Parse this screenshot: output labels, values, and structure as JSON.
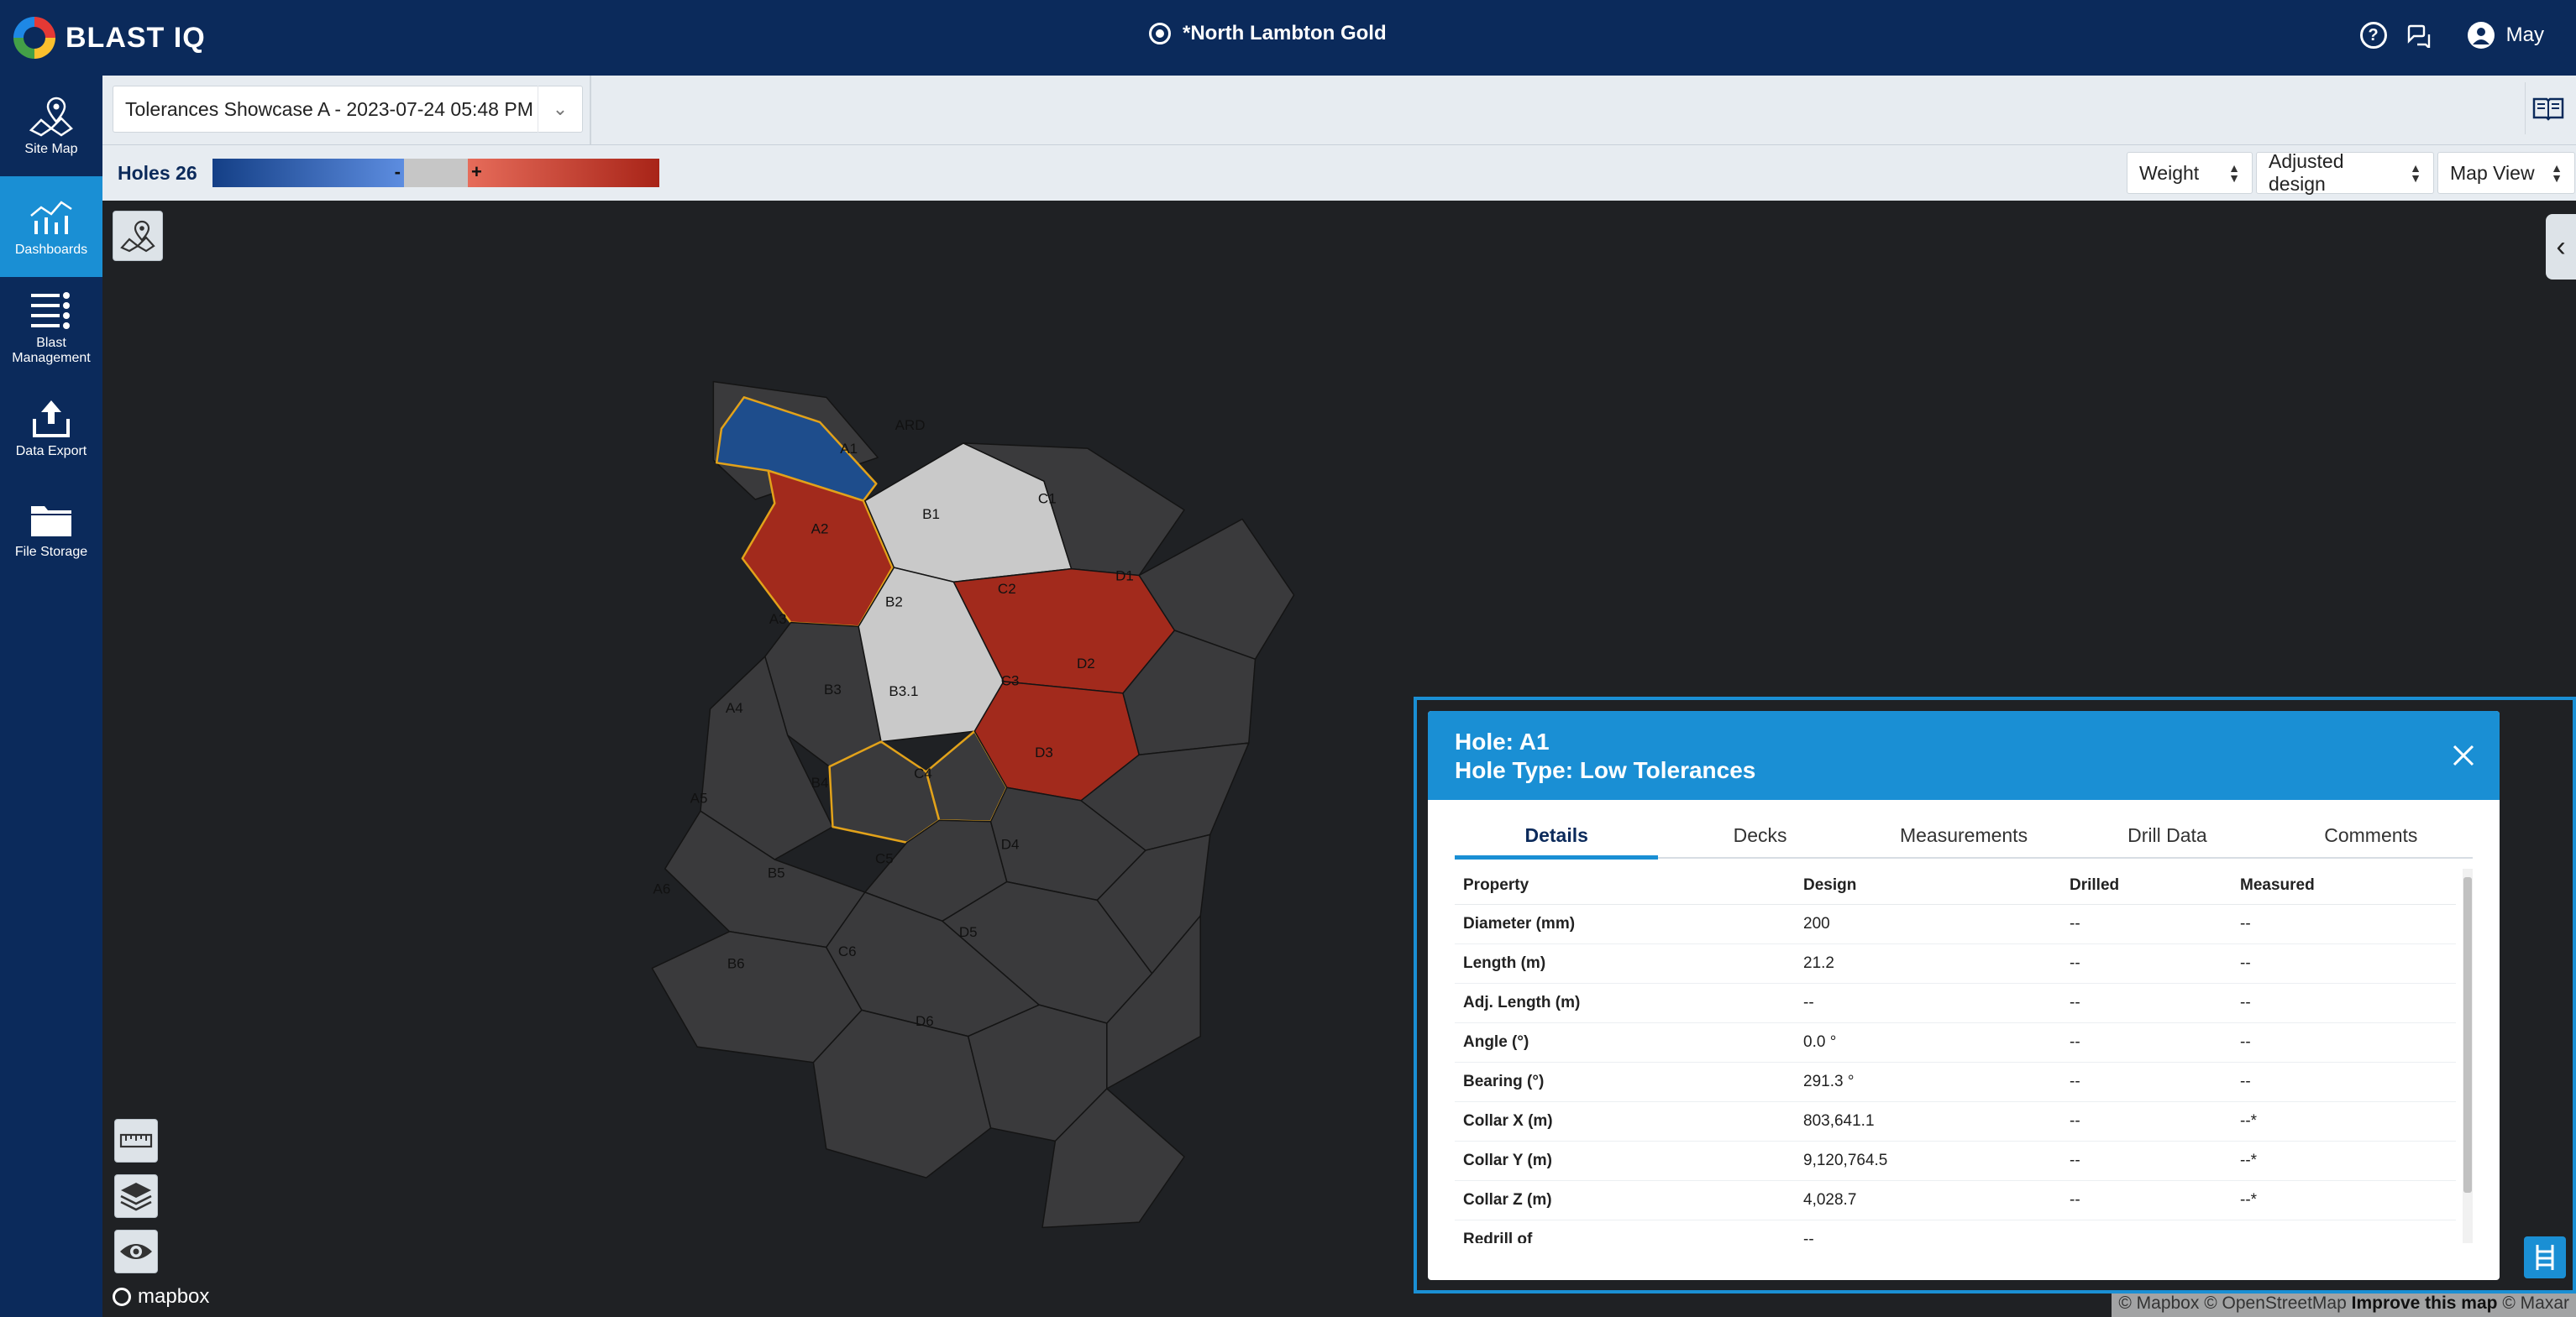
{
  "app": {
    "brand": "BLAST IQ",
    "site_name": "*North Lambton Gold",
    "user_name": "May"
  },
  "sidebar": {
    "items": [
      {
        "label": "Site Map",
        "icon": "map-icon"
      },
      {
        "label": "Dashboards",
        "icon": "dashboard-chart-icon",
        "active": true
      },
      {
        "label": "Blast Management",
        "icon": "list-icon"
      },
      {
        "label": "Data Export",
        "icon": "upload-icon"
      },
      {
        "label": "File Storage",
        "icon": "folder-icon"
      }
    ]
  },
  "toolbar": {
    "dashboard_selected": "Tolerances Showcase A - 2023-07-24 05:48 PM ..."
  },
  "subbar": {
    "holes_label": "Holes 26",
    "legend_minus": "-",
    "legend_plus": "+",
    "selectors": {
      "metric": "Weight",
      "design": "Adjusted design",
      "view": "Map View"
    }
  },
  "map": {
    "holes": [
      {
        "id": "ARD",
        "state": "none"
      },
      {
        "id": "A1",
        "state": "low"
      },
      {
        "id": "A2",
        "state": "high"
      },
      {
        "id": "A3",
        "state": "none"
      },
      {
        "id": "A4",
        "state": "none"
      },
      {
        "id": "A5",
        "state": "none"
      },
      {
        "id": "A6",
        "state": "none"
      },
      {
        "id": "B1",
        "state": "neutral"
      },
      {
        "id": "B2",
        "state": "neutral"
      },
      {
        "id": "B3",
        "state": "none"
      },
      {
        "id": "B3.1",
        "state": "none"
      },
      {
        "id": "B4",
        "state": "none"
      },
      {
        "id": "B5",
        "state": "none"
      },
      {
        "id": "B6",
        "state": "none"
      },
      {
        "id": "C1",
        "state": "none"
      },
      {
        "id": "C2",
        "state": "high"
      },
      {
        "id": "C3",
        "state": "high"
      },
      {
        "id": "C4",
        "state": "none"
      },
      {
        "id": "C5",
        "state": "none"
      },
      {
        "id": "C6",
        "state": "none"
      },
      {
        "id": "D1",
        "state": "none"
      },
      {
        "id": "D2",
        "state": "none"
      },
      {
        "id": "D3",
        "state": "none"
      },
      {
        "id": "D4",
        "state": "none"
      },
      {
        "id": "D5",
        "state": "none"
      },
      {
        "id": "D6",
        "state": "none"
      }
    ],
    "mapbox_label": "mapbox",
    "attribution": {
      "text": "© Mapbox © OpenStreetMap",
      "improve": "Improve this map",
      "suffix": "© Maxar"
    }
  },
  "panel": {
    "title_line1": "Hole: A1",
    "title_line2": "Hole Type: Low Tolerances",
    "tabs": [
      "Details",
      "Decks",
      "Measurements",
      "Drill Data",
      "Comments"
    ],
    "active_tab": "Details",
    "columns": [
      "Property",
      "Design",
      "Drilled",
      "Measured"
    ],
    "rows": [
      [
        "Diameter (mm)",
        "200",
        "--",
        "--"
      ],
      [
        "Length (m)",
        "21.2",
        "--",
        "--"
      ],
      [
        "Adj. Length (m)",
        "--",
        "--",
        "--"
      ],
      [
        "Angle (°)",
        "0.0 °",
        "--",
        "--"
      ],
      [
        "Bearing (°)",
        "291.3 °",
        "--",
        "--"
      ],
      [
        "Collar X (m)",
        "803,641.1",
        "--",
        "--*"
      ],
      [
        "Collar Y (m)",
        "9,120,764.5",
        "--",
        "--*"
      ],
      [
        "Collar Z (m)",
        "4,028.7",
        "--",
        "--*"
      ],
      [
        "Redrill of",
        "--",
        "",
        ""
      ]
    ]
  },
  "colors": {
    "header_bg": "#0b2a5b",
    "accent": "#1a8fd4",
    "low": "#1e4d8c",
    "high": "#a22a1c",
    "neutral": "#c9c9c9",
    "none": "#3a3a3c",
    "highlight_outline": "#e2a21a"
  }
}
